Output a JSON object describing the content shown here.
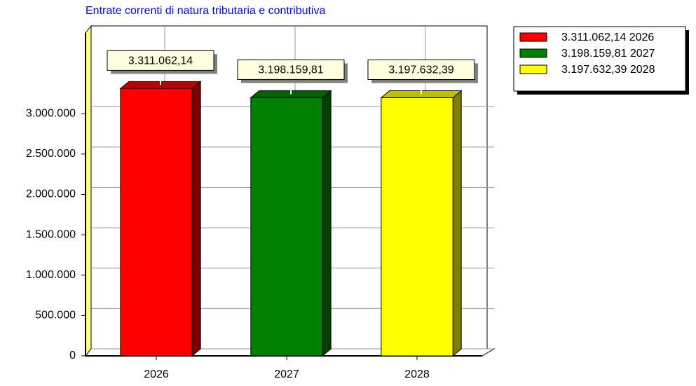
{
  "chart_data": {
    "type": "bar3d",
    "title": "Entrate correnti di natura tributaria e contributiva",
    "categories": [
      "2026",
      "2027",
      "2028"
    ],
    "values": [
      3311062.14,
      3198159.81,
      3197632.39
    ],
    "value_labels": [
      "3.311.062,14",
      "3.198.159,81",
      "3.197.632,39"
    ],
    "colors": [
      "#ff0000",
      "#008000",
      "#ffff00"
    ],
    "ylim": [
      0,
      4000000
    ],
    "yticks": [
      0,
      {
        "value": 500000,
        "label": "500.000"
      },
      {
        "value": 1000000,
        "label": "1.000.000"
      },
      {
        "value": 1500000,
        "label": "1.500.000"
      },
      {
        "value": 2000000,
        "label": "2.000.000"
      },
      {
        "value": 2500000,
        "label": "2.500.000"
      },
      {
        "value": 3000000,
        "label": "3.000.000"
      }
    ],
    "grid": true,
    "legend": "top-right"
  }
}
